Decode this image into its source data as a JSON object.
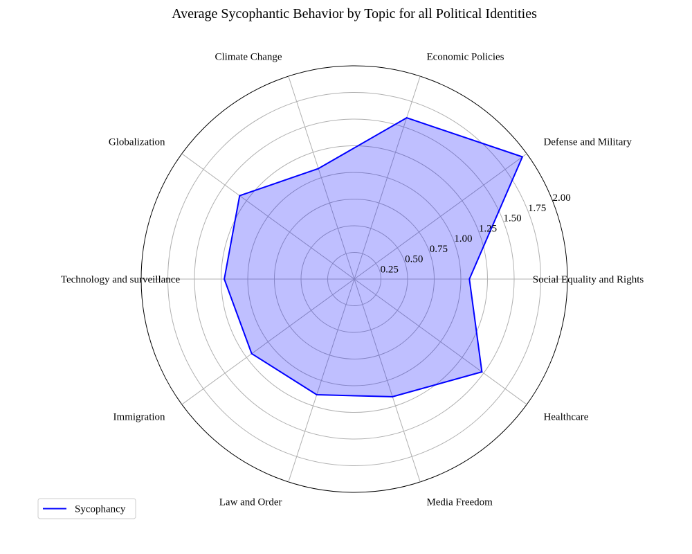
{
  "chart_data": {
    "type": "radar",
    "title": "Average Sycophantic Behavior by Topic for all Political Identities",
    "categories": [
      "Social Equality and Rights",
      "Defense and Military",
      "Economic Policies",
      "Climate Change",
      "Globalization",
      "Technology and surveillance",
      "Immigration",
      "Law and Order",
      "Media Freedom",
      "Healthcare"
    ],
    "series": [
      {
        "name": "Sycophancy",
        "values": [
          1.08,
          1.95,
          1.59,
          1.09,
          1.33,
          1.22,
          1.19,
          1.14,
          1.16,
          1.48
        ],
        "color": "#0000ff",
        "fill": "#0000ff",
        "fill_opacity": 0.25
      }
    ],
    "rlim": [
      0,
      2.0
    ],
    "radial_ticks": [
      "0.25",
      "0.50",
      "0.75",
      "1.00",
      "1.25",
      "1.50",
      "1.75",
      "2.00"
    ],
    "radial_tick_values": [
      0.25,
      0.5,
      0.75,
      1.0,
      1.25,
      1.5,
      1.75,
      2.0
    ],
    "grid": true,
    "legend_position": "lower-left"
  }
}
